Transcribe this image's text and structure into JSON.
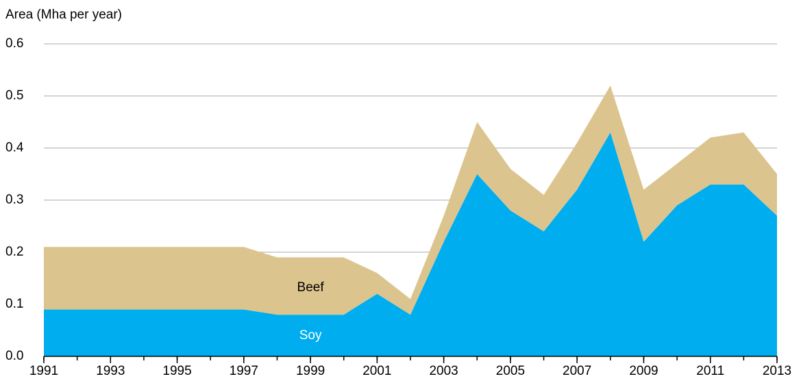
{
  "chart_data": {
    "type": "stacked-area",
    "y_label": "Area (Mha per year)",
    "x": [
      1991,
      1992,
      1993,
      1994,
      1995,
      1996,
      1997,
      1998,
      1999,
      2000,
      2001,
      2002,
      2003,
      2004,
      2005,
      2006,
      2007,
      2008,
      2009,
      2010,
      2011,
      2012,
      2013
    ],
    "series": [
      {
        "name": "Soy",
        "color": "#00aeef",
        "label_color": "#ffffff",
        "values": [
          0.09,
          0.09,
          0.09,
          0.09,
          0.09,
          0.09,
          0.09,
          0.08,
          0.08,
          0.08,
          0.12,
          0.08,
          0.22,
          0.35,
          0.28,
          0.24,
          0.32,
          0.43,
          0.22,
          0.29,
          0.33,
          0.33,
          0.27
        ]
      },
      {
        "name": "Beef",
        "color": "#dcc48f",
        "label_color": "#000000",
        "values": [
          0.12,
          0.12,
          0.12,
          0.12,
          0.12,
          0.12,
          0.12,
          0.11,
          0.11,
          0.11,
          0.04,
          0.03,
          0.05,
          0.1,
          0.08,
          0.07,
          0.09,
          0.09,
          0.1,
          0.08,
          0.09,
          0.1,
          0.08
        ]
      }
    ],
    "xlim": [
      1991,
      2013
    ],
    "xticks": [
      1991,
      1993,
      1995,
      1997,
      1999,
      2001,
      2003,
      2005,
      2007,
      2009,
      2011,
      2013
    ],
    "ylim": [
      0,
      0.6
    ],
    "yticks": [
      {
        "value": 0,
        "label": "0.0"
      },
      0.1,
      0.2,
      0.3,
      0.4,
      0.5,
      0.6
    ],
    "grid": true
  }
}
